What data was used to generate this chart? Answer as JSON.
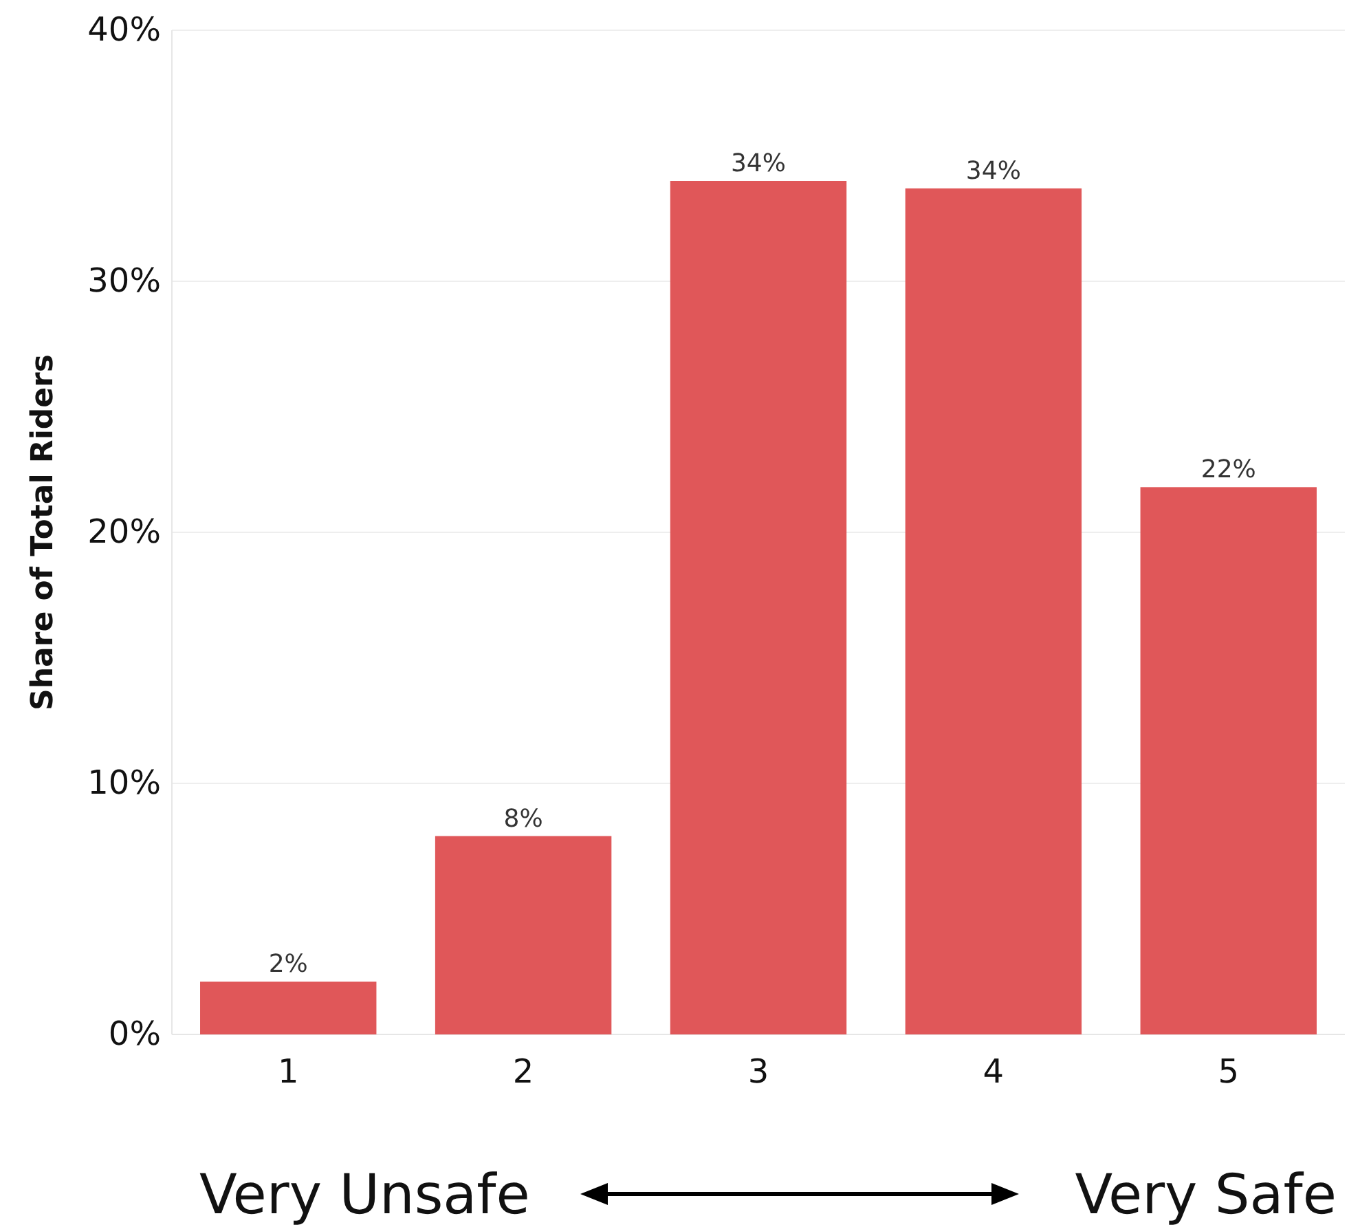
{
  "chart_data": {
    "type": "bar",
    "ylabel": "Share of Total Riders",
    "categories": [
      "1",
      "2",
      "3",
      "4",
      "5"
    ],
    "values": [
      2.1,
      7.9,
      34.0,
      33.7,
      21.8
    ],
    "value_labels": [
      "2%",
      "8%",
      "34%",
      "34%",
      "22%"
    ],
    "color": "#e05759",
    "ylim": [
      0,
      40
    ],
    "yticks": [
      {
        "value": 0,
        "label": "0%"
      },
      {
        "value": 10,
        "label": "10%"
      },
      {
        "value": 20,
        "label": "20%"
      },
      {
        "value": 30,
        "label": "30%"
      },
      {
        "value": 40,
        "label": "40%"
      }
    ],
    "grid": "y",
    "annotations": [
      "Very Unsafe",
      "Very Safe"
    ]
  }
}
